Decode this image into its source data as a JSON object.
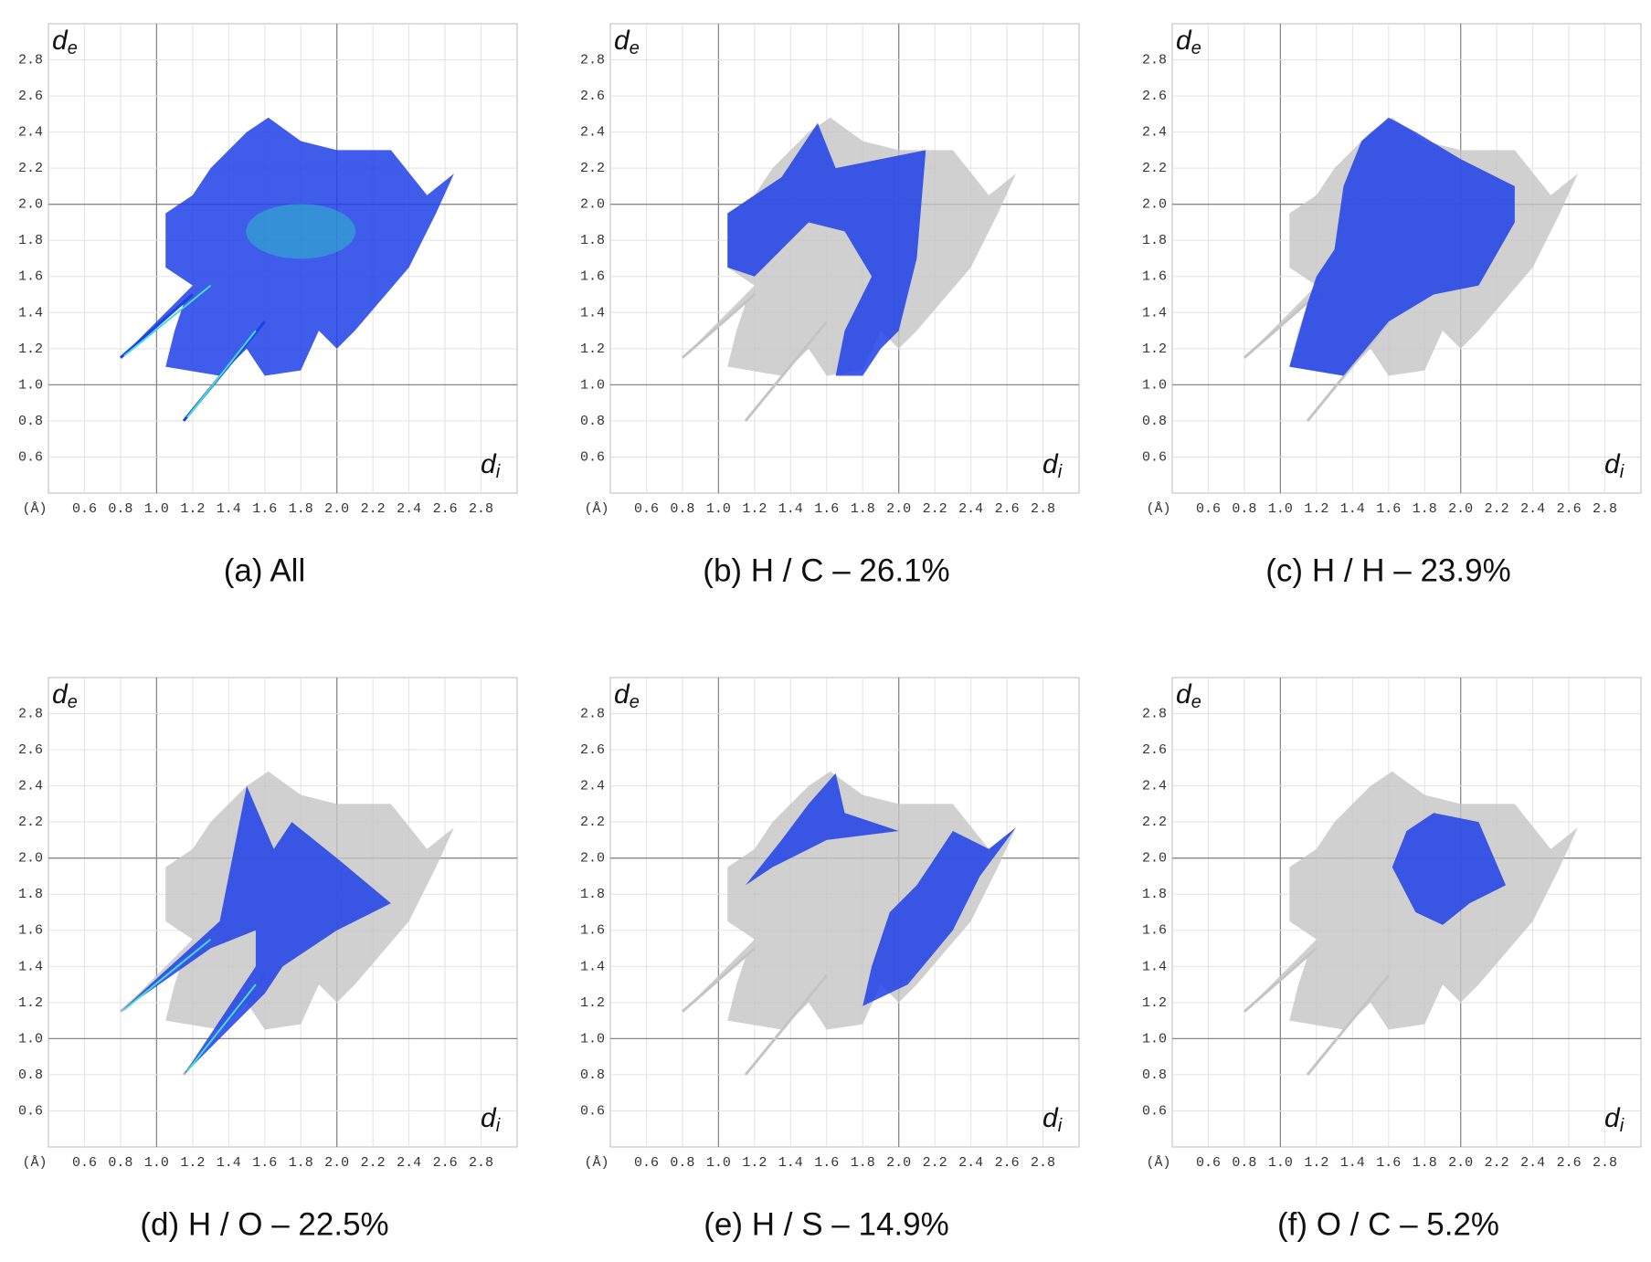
{
  "chart_data": [
    {
      "type": "scatter",
      "caption": "(a) All",
      "y_label": {
        "main": "d",
        "sub": "e"
      },
      "x_label": {
        "main": "d",
        "sub": "i"
      },
      "unit": "(Å)",
      "xlim": [
        0.4,
        3.0
      ],
      "ylim": [
        0.4,
        3.0
      ],
      "xticks": [
        0.6,
        0.8,
        {
          "value": 1,
          "label": "1.0"
        },
        1.2,
        1.4,
        1.6,
        1.8,
        {
          "value": 2,
          "label": "2.0"
        },
        2.2,
        2.4,
        2.6,
        2.8
      ],
      "yticks": [
        0.6,
        0.8,
        {
          "value": 1,
          "label": "1.0"
        },
        1.2,
        1.4,
        1.6,
        1.8,
        {
          "value": 2,
          "label": "2.0"
        },
        2.2,
        2.4,
        2.6,
        2.8
      ],
      "grid": true
    },
    {
      "type": "scatter",
      "caption": "(b) H / C – 26.1%",
      "y_label": {
        "main": "d",
        "sub": "e"
      },
      "x_label": {
        "main": "d",
        "sub": "i"
      },
      "unit": "(Å)",
      "xlim": [
        0.4,
        3.0
      ],
      "ylim": [
        0.4,
        3.0
      ],
      "xticks": [
        0.6,
        0.8,
        {
          "value": 1,
          "label": "1.0"
        },
        1.2,
        1.4,
        1.6,
        1.8,
        {
          "value": 2,
          "label": "2.0"
        },
        2.2,
        2.4,
        2.6,
        2.8
      ],
      "yticks": [
        0.6,
        0.8,
        {
          "value": 1,
          "label": "1.0"
        },
        1.2,
        1.4,
        1.6,
        1.8,
        {
          "value": 2,
          "label": "2.0"
        },
        2.2,
        2.4,
        2.6,
        2.8
      ],
      "grid": true
    },
    {
      "type": "scatter",
      "caption": "(c) H / H – 23.9%",
      "y_label": {
        "main": "d",
        "sub": "e"
      },
      "x_label": {
        "main": "d",
        "sub": "i"
      },
      "unit": "(Å)",
      "xlim": [
        0.4,
        3.0
      ],
      "ylim": [
        0.4,
        3.0
      ],
      "xticks": [
        0.6,
        0.8,
        {
          "value": 1,
          "label": "1.0"
        },
        1.2,
        1.4,
        1.6,
        1.8,
        {
          "value": 2,
          "label": "2.0"
        },
        2.2,
        2.4,
        2.6,
        2.8
      ],
      "yticks": [
        0.6,
        0.8,
        {
          "value": 1,
          "label": "1.0"
        },
        1.2,
        1.4,
        1.6,
        1.8,
        {
          "value": 2,
          "label": "2.0"
        },
        2.2,
        2.4,
        2.6,
        2.8
      ],
      "grid": true
    },
    {
      "type": "scatter",
      "caption": "(d) H / O – 22.5%",
      "y_label": {
        "main": "d",
        "sub": "e"
      },
      "x_label": {
        "main": "d",
        "sub": "i"
      },
      "unit": "(Å)",
      "xlim": [
        0.4,
        3.0
      ],
      "ylim": [
        0.4,
        3.0
      ],
      "xticks": [
        0.6,
        0.8,
        {
          "value": 1,
          "label": "1.0"
        },
        1.2,
        1.4,
        1.6,
        1.8,
        {
          "value": 2,
          "label": "2.0"
        },
        2.2,
        2.4,
        2.6,
        2.8
      ],
      "yticks": [
        0.6,
        0.8,
        {
          "value": 1,
          "label": "1.0"
        },
        1.2,
        1.4,
        1.6,
        1.8,
        {
          "value": 2,
          "label": "2.0"
        },
        2.2,
        2.4,
        2.6,
        2.8
      ],
      "grid": true
    },
    {
      "type": "scatter",
      "caption": "(e) H / S – 14.9%",
      "y_label": {
        "main": "d",
        "sub": "e"
      },
      "x_label": {
        "main": "d",
        "sub": "i"
      },
      "unit": "(Å)",
      "xlim": [
        0.4,
        3.0
      ],
      "ylim": [
        0.4,
        3.0
      ],
      "xticks": [
        0.6,
        0.8,
        {
          "value": 1,
          "label": "1.0"
        },
        1.2,
        1.4,
        1.6,
        1.8,
        {
          "value": 2,
          "label": "2.0"
        },
        2.2,
        2.4,
        2.6,
        2.8
      ],
      "yticks": [
        0.6,
        0.8,
        {
          "value": 1,
          "label": "1.0"
        },
        1.2,
        1.4,
        1.6,
        1.8,
        {
          "value": 2,
          "label": "2.0"
        },
        2.2,
        2.4,
        2.6,
        2.8
      ],
      "grid": true
    },
    {
      "type": "scatter",
      "caption": "(f) O / C – 5.2%",
      "y_label": {
        "main": "d",
        "sub": "e"
      },
      "x_label": {
        "main": "d",
        "sub": "i"
      },
      "unit": "(Å)",
      "xlim": [
        0.4,
        3.0
      ],
      "ylim": [
        0.4,
        3.0
      ],
      "xticks": [
        0.6,
        0.8,
        {
          "value": 1,
          "label": "1.0"
        },
        1.2,
        1.4,
        1.6,
        1.8,
        {
          "value": 2,
          "label": "2.0"
        },
        2.2,
        2.4,
        2.6,
        2.8
      ],
      "yticks": [
        0.6,
        0.8,
        {
          "value": 1,
          "label": "1.0"
        },
        1.2,
        1.4,
        1.6,
        1.8,
        {
          "value": 2,
          "label": "2.0"
        },
        2.2,
        2.4,
        2.6,
        2.8
      ],
      "grid": true
    }
  ]
}
